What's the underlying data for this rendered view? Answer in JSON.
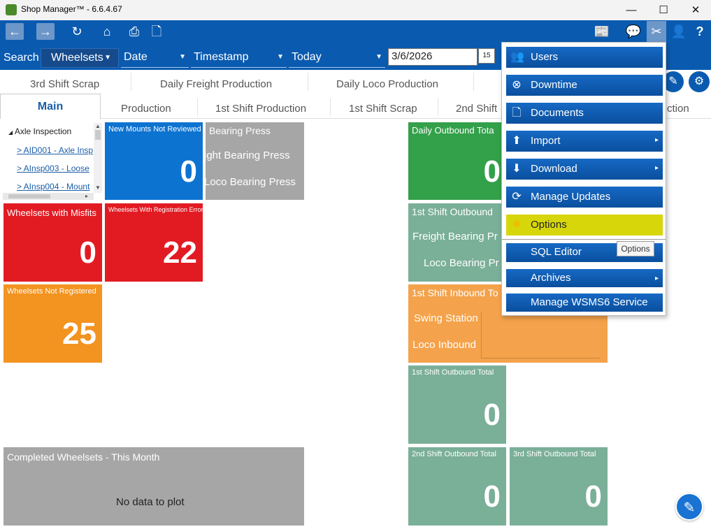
{
  "window": {
    "title": "Shop Manager™ - 6.6.4.67",
    "minimize": "—",
    "maximize": "☐",
    "close": "✕"
  },
  "toolbar": {
    "back": "←",
    "forward": "→",
    "refresh": "↻",
    "home": "⌂",
    "print": "⎙",
    "document": "🗋",
    "news": "📰",
    "chat": "💬",
    "tools": "✂",
    "user": "👤",
    "help": "?"
  },
  "search": {
    "label": "Search",
    "type": "Wheelsets",
    "field": "Date",
    "timestamp": "Timestamp",
    "range": "Today",
    "date": "3/6/2026",
    "calendar": "15"
  },
  "tabs_row1": [
    "3rd Shift Scrap",
    "Daily Freight Production",
    "Daily Loco Production"
  ],
  "tabs_row2": {
    "main": "Main",
    "others": [
      "Production",
      "1st Shift Production",
      "1st Shift Scrap",
      "2nd Shift"
    ],
    "partial": "ction"
  },
  "tree": {
    "root": "Axle Inspection",
    "links": [
      "> AID001 - Axle Insp",
      "> AInsp003 - Loose",
      "> AInsp004 - Mount"
    ]
  },
  "tiles": {
    "new_mounts": {
      "title": "New Mounts Not Reviewed",
      "value": "0"
    },
    "bearing": {
      "title": "Bearing Press",
      "line1": "ight Bearing Press",
      "line2": "Loco Bearing Press"
    },
    "misfits": {
      "title": "Wheelsets with Misfits",
      "value": "0"
    },
    "reg_errors": {
      "title": "Wheelsets With Registration Errors",
      "value": "22"
    },
    "not_registered": {
      "title": "Wheelsets Not Registered",
      "value": "25"
    },
    "completed": {
      "title": "Completed Wheelsets - This Month",
      "empty": "No data to plot"
    },
    "daily_outbound": {
      "title": "Daily Outbound Tota",
      "value": "0"
    },
    "first_outbound_chart": {
      "title": "1st Shift Outbound",
      "line1": "Freight Bearing Pr",
      "line2": "Loco Bearing Pr"
    },
    "first_inbound": {
      "title": "1st Shift Inbound To",
      "line1": "Swing Station",
      "line2": "Loco Inbound"
    },
    "first_outbound_total": {
      "title": "1st Shift Outbound Total",
      "value": "0"
    },
    "second_outbound_total": {
      "title": "2nd Shift Outbound Total",
      "value": "0"
    },
    "third_outbound_total": {
      "title": "3rd Shift Outbound Total",
      "value": "0"
    }
  },
  "menu": {
    "items": [
      {
        "label": "Users",
        "icon": "👥"
      },
      {
        "label": "Downtime",
        "icon": "⊗"
      },
      {
        "label": "Documents",
        "icon": "🗋"
      },
      {
        "label": "Import",
        "icon": "⬆",
        "arrow": "▸"
      },
      {
        "label": "Download",
        "icon": "⬇",
        "arrow": "▸"
      },
      {
        "label": "Manage Updates",
        "icon": "⟳"
      },
      {
        "label": "Options",
        "icon": "✹"
      },
      {
        "label": "SQL Editor"
      },
      {
        "label": "Archives",
        "arrow": "▸"
      },
      {
        "label": "Manage WSMS6 Service"
      }
    ],
    "tooltip": "Options"
  },
  "fab": "✎"
}
